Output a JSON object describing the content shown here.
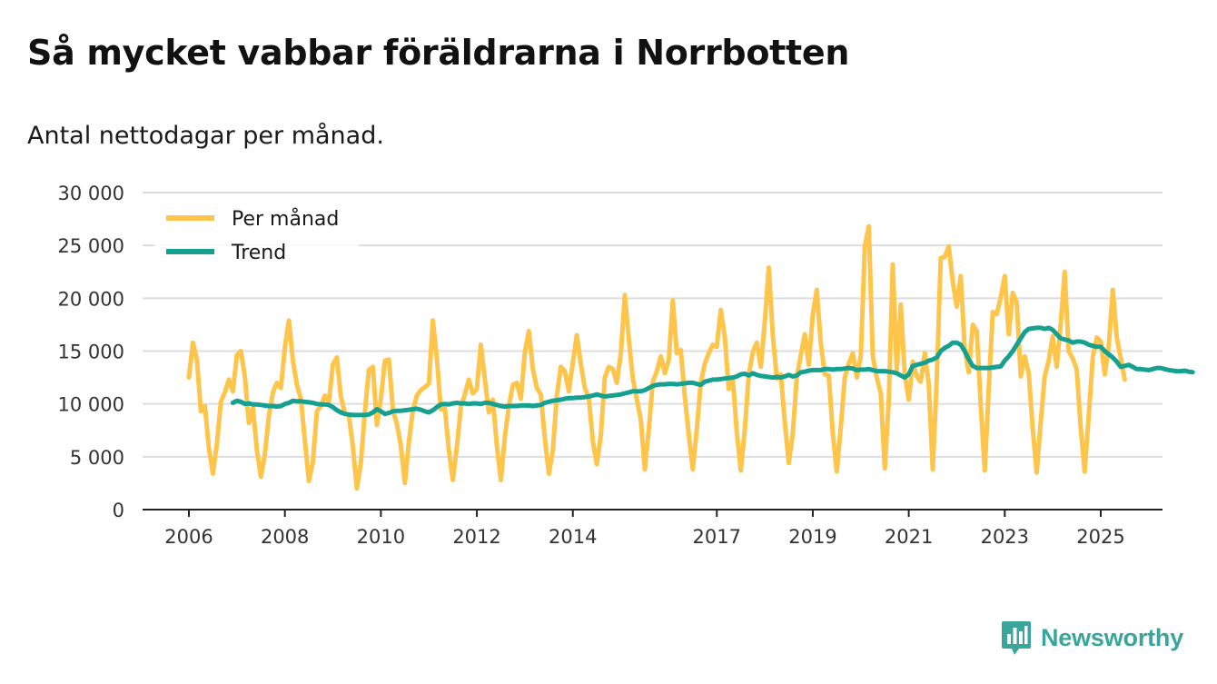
{
  "title": "Så mycket vabbar föräldrarna i Norrbotten",
  "subtitle": "Antal nettodagar per månad.",
  "brand": {
    "name": "Newsworthy",
    "icon": "newsworthy-logo-icon",
    "color": "#3aa59b"
  },
  "chart_data": {
    "type": "line",
    "title": "Så mycket vabbar föräldrarna i Norrbotten",
    "subtitle": "Antal nettodagar per månad.",
    "xlabel": "",
    "ylabel": "",
    "ylim": [
      0,
      30000
    ],
    "xlim": [
      2006.0,
      2025.5
    ],
    "grid": true,
    "legend_position": "top-left",
    "y_ticks": [
      0,
      5000,
      10000,
      15000,
      20000,
      25000,
      30000
    ],
    "y_tick_labels": [
      "0",
      "5 000",
      "10 000",
      "15 000",
      "20 000",
      "25 000",
      "30 000"
    ],
    "x_ticks": [
      2006,
      2008,
      2010,
      2012,
      2014,
      2017,
      2019,
      2021,
      2023,
      2025
    ],
    "x_tick_labels": [
      "2006",
      "2008",
      "2010",
      "2012",
      "2014",
      "2017",
      "2019",
      "2021",
      "2023",
      "2025"
    ],
    "series": [
      {
        "name": "Per månad",
        "color": "#ffc54a",
        "start": 2006.0,
        "step": 0.08333,
        "values": [
          12500,
          15800,
          14200,
          9300,
          9800,
          5800,
          3400,
          6200,
          10200,
          11100,
          12300,
          11200,
          14600,
          15000,
          12600,
          8200,
          9600,
          5600,
          3100,
          5300,
          8900,
          11100,
          12000,
          11500,
          15400,
          17900,
          14100,
          11800,
          10500,
          6500,
          2700,
          4500,
          9300,
          9800,
          10800,
          10200,
          13700,
          14400,
          10700,
          9100,
          8900,
          6000,
          2000,
          4400,
          9200,
          13200,
          13500,
          8000,
          10500,
          14100,
          14200,
          9400,
          8100,
          6000,
          2500,
          6400,
          9400,
          10800,
          11300,
          11600,
          11900,
          17900,
          14300,
          9500,
          9700,
          5600,
          2800,
          5900,
          9700,
          10900,
          12300,
          11000,
          11400,
          15600,
          12400,
          9200,
          10400,
          6000,
          2800,
          6900,
          9800,
          11800,
          12000,
          10500,
          14900,
          16900,
          13300,
          11500,
          10900,
          6700,
          3400,
          5600,
          10800,
          13500,
          13100,
          11200,
          13900,
          16500,
          13800,
          11500,
          10600,
          6500,
          4300,
          7000,
          12500,
          13500,
          13300,
          12000,
          14800,
          20300,
          16100,
          12400,
          10400,
          8500,
          3800,
          7600,
          12100,
          13100,
          14500,
          12900,
          14200,
          19800,
          14800,
          15100,
          10700,
          7100,
          3800,
          7600,
          12000,
          13800,
          14800,
          15600,
          15400,
          18900,
          16400,
          11400,
          12300,
          7300,
          3700,
          7600,
          12800,
          14900,
          15800,
          13500,
          17800,
          22900,
          16500,
          12400,
          12800,
          8300,
          4400,
          7200,
          12500,
          14600,
          16600,
          13700,
          18400,
          20800,
          15800,
          12800,
          12700,
          7300,
          3600,
          7700,
          12500,
          13800,
          14800,
          12500,
          14500,
          24900,
          26800,
          14500,
          12500,
          11000,
          3900,
          10300,
          23200,
          13100,
          19400,
          12800,
          10400,
          14000,
          12600,
          12100,
          14800,
          11900,
          3800,
          12300,
          23800,
          23900,
          24900,
          21600,
          19200,
          22100,
          15200,
          13000,
          17500,
          16900,
          9800,
          3700,
          11500,
          18700,
          18500,
          20100,
          22100,
          16600,
          20500,
          19600,
          12600,
          14500,
          12900,
          7600,
          3500,
          8300,
          12600,
          14100,
          16400,
          13500,
          17600,
          22500,
          15000,
          14300,
          13300,
          7800,
          3600,
          8800,
          14400,
          16300,
          15900,
          12800,
          15500,
          20800,
          16300,
          14300,
          12300
        ]
      },
      {
        "name": "Trend",
        "color": "#16a08f",
        "start": 2006.9167,
        "step": 0.08333,
        "values": [
          10100,
          10300,
          10200,
          10000,
          10050,
          9950,
          9950,
          9900,
          9850,
          9800,
          9800,
          9750,
          9800,
          10000,
          10100,
          10300,
          10250,
          10250,
          10200,
          10150,
          10100,
          10000,
          9950,
          9950,
          9900,
          9700,
          9400,
          9200,
          9050,
          9000,
          8950,
          8950,
          8950,
          8950,
          9000,
          9200,
          9500,
          9300,
          9050,
          9150,
          9300,
          9350,
          9350,
          9400,
          9450,
          9500,
          9550,
          9450,
          9300,
          9200,
          9400,
          9700,
          9950,
          10000,
          9950,
          10050,
          10100,
          10050,
          10050,
          10000,
          10050,
          10050,
          10000,
          10100,
          10100,
          10000,
          9900,
          9800,
          9750,
          9800,
          9800,
          9800,
          9850,
          9850,
          9850,
          9800,
          9850,
          9900,
          10100,
          10200,
          10300,
          10350,
          10400,
          10500,
          10550,
          10550,
          10600,
          10600,
          10650,
          10700,
          10800,
          10900,
          10800,
          10700,
          10750,
          10800,
          10850,
          10900,
          11000,
          11100,
          11200,
          11200,
          11200,
          11300,
          11500,
          11700,
          11800,
          11850,
          11850,
          11900,
          11900,
          11850,
          11900,
          11950,
          12000,
          12000,
          11900,
          11800,
          12100,
          12200,
          12300,
          12300,
          12350,
          12400,
          12450,
          12500,
          12600,
          12800,
          12850,
          12700,
          12900,
          12750,
          12650,
          12600,
          12550,
          12500,
          12550,
          12500,
          12600,
          12750,
          12600,
          12700,
          13000,
          13050,
          13150,
          13200,
          13200,
          13200,
          13300,
          13300,
          13250,
          13300,
          13300,
          13350,
          13400,
          13350,
          13200,
          13250,
          13250,
          13300,
          13200,
          13100,
          13100,
          13100,
          13050,
          13000,
          12900,
          12700,
          12500,
          12800,
          13600,
          13700,
          13800,
          13900,
          14100,
          14200,
          14400,
          15000,
          15300,
          15500,
          15800,
          15800,
          15600,
          15000,
          14200,
          13600,
          13400,
          13400,
          13400,
          13400,
          13450,
          13500,
          13550,
          14100,
          14500,
          15000,
          15600,
          16200,
          16800,
          17100,
          17150,
          17200,
          17200,
          17100,
          17200,
          17000,
          16600,
          16200,
          16100,
          16000,
          15800,
          15900,
          15900,
          15800,
          15600,
          15500,
          15400,
          15400,
          15000,
          14700,
          14400,
          14000,
          13500,
          13600,
          13700,
          13500,
          13300,
          13300,
          13250,
          13200,
          13300,
          13400,
          13400,
          13300,
          13200,
          13150,
          13100,
          13100,
          13150,
          13050,
          13000
        ]
      }
    ]
  }
}
